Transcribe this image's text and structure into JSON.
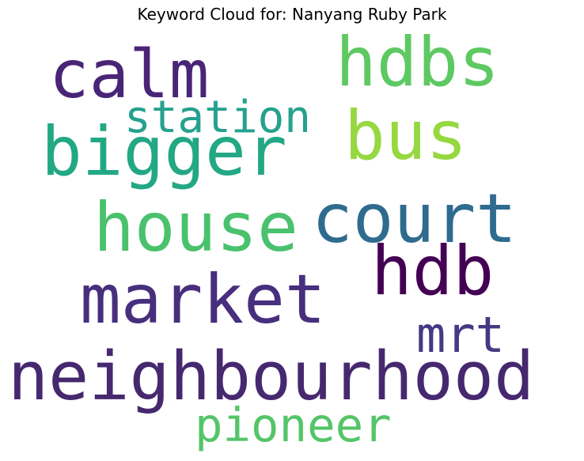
{
  "title": "Keyword Cloud for: Nanyang Ruby Park",
  "words": [
    {
      "text": "calm",
      "color": "#482576"
    },
    {
      "text": "hdbs",
      "color": "#5ec962"
    },
    {
      "text": "station",
      "color": "#25a18e"
    },
    {
      "text": "bigger",
      "color": "#22a884"
    },
    {
      "text": "bus",
      "color": "#95d840"
    },
    {
      "text": "court",
      "color": "#2f6b8e"
    },
    {
      "text": "house",
      "color": "#4ac16d"
    },
    {
      "text": "hdb",
      "color": "#440154"
    },
    {
      "text": "market",
      "color": "#472f7d"
    },
    {
      "text": "mrt",
      "color": "#443983"
    },
    {
      "text": "neighbourhood",
      "color": "#46286f"
    },
    {
      "text": "pioneer",
      "color": "#54c568"
    }
  ]
}
